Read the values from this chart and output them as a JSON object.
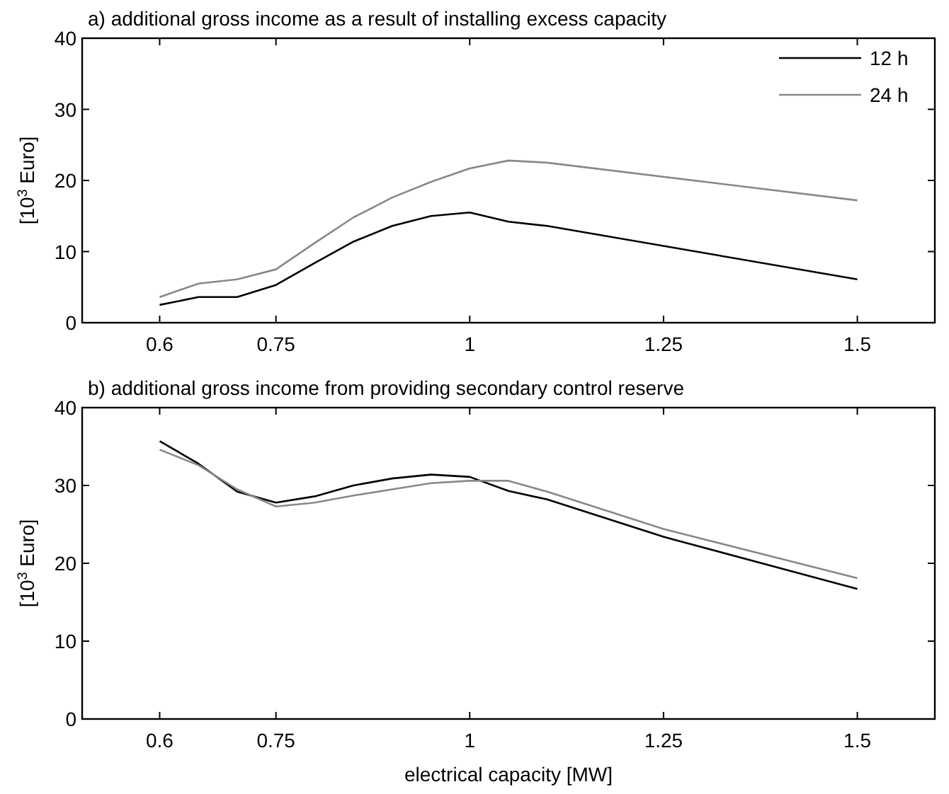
{
  "chart_data": [
    {
      "type": "line",
      "title": "a) additional gross income as a result of installing excess capacity",
      "ylabel": "[10$^{3}$ Euro]",
      "x": [
        0.6,
        0.65,
        0.7,
        0.75,
        0.8,
        0.85,
        0.9,
        0.95,
        1.0,
        1.05,
        1.1,
        1.5
      ],
      "xlim": [
        0.5,
        1.6
      ],
      "xticks": [
        0.6,
        0.75,
        1,
        1.25,
        1.5
      ],
      "ylim": [
        0,
        40
      ],
      "yticks": [
        0,
        10,
        20,
        30,
        40
      ],
      "grid": false,
      "legend": "top right",
      "marker": "none",
      "line_style": "solid",
      "series": [
        {
          "name": "12 h",
          "color": "#000000",
          "values": [
            2.5,
            3.6,
            3.6,
            5.3,
            8.4,
            11.4,
            13.6,
            15.0,
            15.5,
            14.2,
            13.6,
            6.1
          ]
        },
        {
          "name": "24 h",
          "color": "#888888",
          "values": [
            3.6,
            5.5,
            6.1,
            7.5,
            11.2,
            14.8,
            17.6,
            19.8,
            21.7,
            22.8,
            22.5,
            17.2
          ]
        }
      ]
    },
    {
      "type": "line",
      "title": "b) additional gross income from providing secondary control reserve",
      "xlabel": "electrical capacity [MW]",
      "ylabel": "[10$^{3}$ Euro]",
      "x": [
        0.6,
        0.65,
        0.7,
        0.75,
        0.8,
        0.85,
        0.9,
        0.95,
        1.0,
        1.05,
        1.1,
        1.25,
        1.5
      ],
      "xlim": [
        0.5,
        1.6
      ],
      "xticks": [
        0.6,
        0.75,
        1,
        1.25,
        1.5
      ],
      "ylim": [
        0,
        40
      ],
      "yticks": [
        0,
        10,
        20,
        30,
        40
      ],
      "grid": false,
      "marker": "none",
      "line_style": "solid",
      "series": [
        {
          "color": "#000000",
          "values": [
            35.7,
            32.8,
            29.2,
            27.8,
            28.6,
            30.0,
            30.9,
            31.4,
            31.1,
            29.3,
            28.2,
            23.4,
            16.7
          ]
        },
        {
          "color": "#888888",
          "values": [
            34.6,
            32.6,
            29.5,
            27.3,
            27.8,
            28.7,
            29.5,
            30.3,
            30.6,
            30.6,
            29.2,
            24.4,
            18.1
          ]
        }
      ]
    }
  ]
}
